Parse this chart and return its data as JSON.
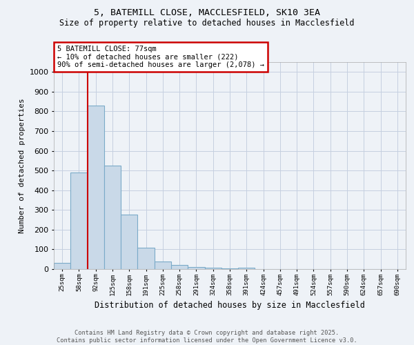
{
  "title_line1": "5, BATEMILL CLOSE, MACCLESFIELD, SK10 3EA",
  "title_line2": "Size of property relative to detached houses in Macclesfield",
  "xlabel": "Distribution of detached houses by size in Macclesfield",
  "ylabel": "Number of detached properties",
  "bar_values": [
    30,
    490,
    830,
    525,
    275,
    110,
    38,
    22,
    12,
    8,
    5,
    8,
    0,
    0,
    0,
    0,
    0,
    0,
    0,
    0,
    0
  ],
  "bar_labels": [
    "25sqm",
    "58sqm",
    "92sqm",
    "125sqm",
    "158sqm",
    "191sqm",
    "225sqm",
    "258sqm",
    "291sqm",
    "324sqm",
    "358sqm",
    "391sqm",
    "424sqm",
    "457sqm",
    "491sqm",
    "524sqm",
    "557sqm",
    "590sqm",
    "624sqm",
    "657sqm",
    "690sqm"
  ],
  "bar_color": "#c9d9e8",
  "bar_edge_color": "#7aaac8",
  "vline_x_index": 1.5,
  "vline_color": "#cc0000",
  "annotation_text": "5 BATEMILL CLOSE: 77sqm\n← 10% of detached houses are smaller (222)\n90% of semi-detached houses are larger (2,078) →",
  "annotation_box_color": "white",
  "annotation_edge_color": "#cc0000",
  "ylim": [
    0,
    1050
  ],
  "yticks": [
    0,
    100,
    200,
    300,
    400,
    500,
    600,
    700,
    800,
    900,
    1000
  ],
  "footer_line1": "Contains HM Land Registry data © Crown copyright and database right 2025.",
  "footer_line2": "Contains public sector information licensed under the Open Government Licence v3.0.",
  "background_color": "#eef2f7",
  "grid_color": "#c5cfe0"
}
